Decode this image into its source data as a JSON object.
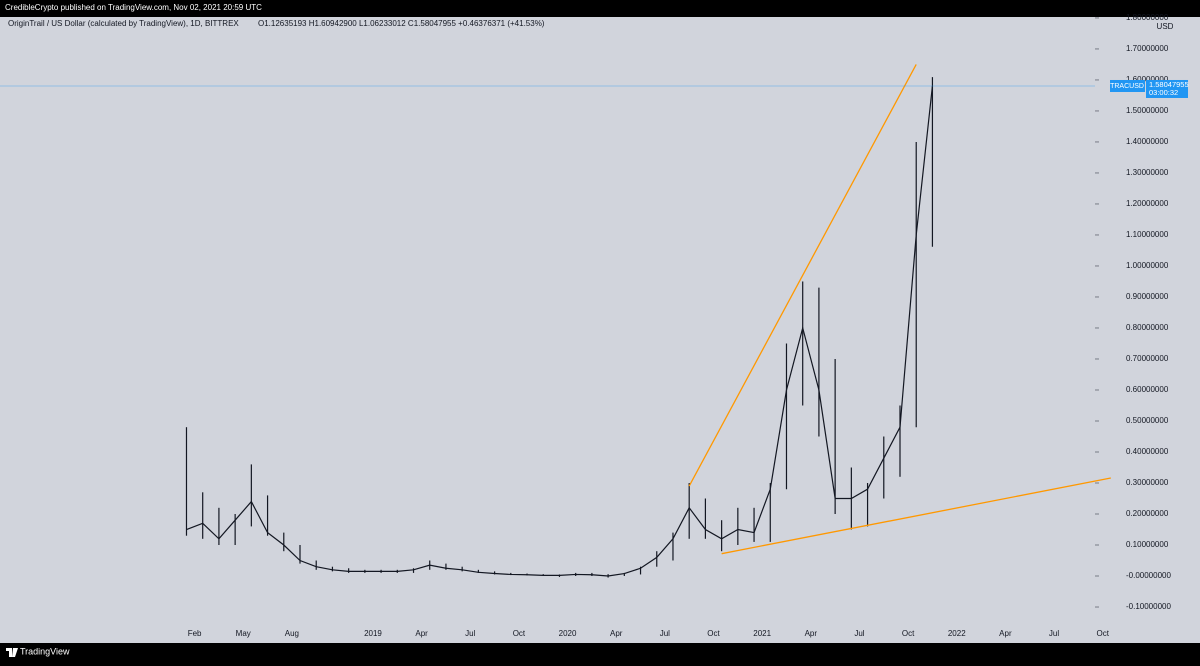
{
  "header": {
    "publisher": "CredibleCrypto published on TradingView.com, Nov 02, 2021 20:59 UTC"
  },
  "chart_data": {
    "type": "hlc",
    "symbol": "OriginTrail / US Dollar (calculated by TradingView), 1D, BITTREX",
    "ohlc_text": "O1.12635193 H1.60942900 L1.06233012 C1.58047955 +0.46376371 (+41.53%)",
    "x": [
      "2018-01",
      "2018-02",
      "2018-03",
      "2018-04",
      "2018-05",
      "2018-06",
      "2018-07",
      "2018-08",
      "2018-09",
      "2018-10",
      "2018-11",
      "2018-12",
      "2019-01",
      "2019-02",
      "2019-03",
      "2019-04",
      "2019-05",
      "2019-06",
      "2019-07",
      "2019-08",
      "2019-09",
      "2019-10",
      "2019-11",
      "2019-12",
      "2020-01",
      "2020-02",
      "2020-03",
      "2020-04",
      "2020-05",
      "2020-06",
      "2020-07",
      "2020-08",
      "2020-09",
      "2020-10",
      "2020-11",
      "2020-12",
      "2021-01",
      "2021-02",
      "2021-03",
      "2021-04",
      "2021-05",
      "2021-06",
      "2021-07",
      "2021-08",
      "2021-09",
      "2021-10",
      "2021-11"
    ],
    "high": [
      0.48,
      0.27,
      0.22,
      0.2,
      0.36,
      0.26,
      0.14,
      0.1,
      0.05,
      0.03,
      0.025,
      0.02,
      0.02,
      0.02,
      0.025,
      0.05,
      0.04,
      0.03,
      0.02,
      0.015,
      0.01,
      0.008,
      0.006,
      0.005,
      0.01,
      0.01,
      0.006,
      0.01,
      0.03,
      0.08,
      0.14,
      0.3,
      0.25,
      0.18,
      0.22,
      0.22,
      0.3,
      0.75,
      0.95,
      0.93,
      0.7,
      0.35,
      0.3,
      0.45,
      0.55,
      1.4,
      1.609
    ],
    "low": [
      0.13,
      0.12,
      0.1,
      0.1,
      0.16,
      0.13,
      0.08,
      0.04,
      0.02,
      0.015,
      0.01,
      0.01,
      0.01,
      0.01,
      0.01,
      0.02,
      0.02,
      0.015,
      0.01,
      0.005,
      0.003,
      0.002,
      0,
      -0.003,
      0,
      0,
      -0.005,
      0,
      0.005,
      0.03,
      0.05,
      0.12,
      0.12,
      0.08,
      0.1,
      0.11,
      0.11,
      0.28,
      0.55,
      0.45,
      0.2,
      0.15,
      0.16,
      0.25,
      0.32,
      0.48,
      1.062
    ],
    "close": [
      0.15,
      0.17,
      0.12,
      0.18,
      0.24,
      0.14,
      0.1,
      0.05,
      0.03,
      0.02,
      0.015,
      0.015,
      0.015,
      0.015,
      0.02,
      0.035,
      0.025,
      0.02,
      0.012,
      0.008,
      0.005,
      0.004,
      0.002,
      0.002,
      0.005,
      0.004,
      0,
      0.008,
      0.025,
      0.06,
      0.12,
      0.22,
      0.15,
      0.12,
      0.15,
      0.14,
      0.28,
      0.6,
      0.8,
      0.6,
      0.25,
      0.25,
      0.28,
      0.38,
      0.48,
      1.1,
      1.58047955
    ],
    "color": "#131722",
    "trendlines": [
      {
        "x": [
          "2020-08",
          "2021-10"
        ],
        "values": [
          0.29,
          1.65
        ],
        "color": "#ff9800"
      },
      {
        "x": [
          "2020-10",
          "2022-10"
        ],
        "values": [
          0.072,
          0.316
        ],
        "color": "#ff9800"
      }
    ],
    "last_price": 1.58047955,
    "last_symbol": "TRACUSD",
    "countdown": "03:00:32",
    "price_color": "#2196f3",
    "axis_unit": "USD",
    "xlim": [
      "2017-02",
      "2023-04"
    ],
    "xticks": [
      {
        "value": "2018-02",
        "label": "Feb"
      },
      {
        "value": "2018-05",
        "label": "May"
      },
      {
        "value": "2018-08",
        "label": "Aug"
      },
      {
        "value": "2019-01",
        "label": "2019"
      },
      {
        "value": "2019-04",
        "label": "Apr"
      },
      {
        "value": "2019-07",
        "label": "Jul"
      },
      {
        "value": "2019-10",
        "label": "Oct"
      },
      {
        "value": "2020-01",
        "label": "2020"
      },
      {
        "value": "2020-04",
        "label": "Apr"
      },
      {
        "value": "2020-07",
        "label": "Jul"
      },
      {
        "value": "2020-10",
        "label": "Oct"
      },
      {
        "value": "2021-01",
        "label": "2021"
      },
      {
        "value": "2021-04",
        "label": "Apr"
      },
      {
        "value": "2021-07",
        "label": "Jul"
      },
      {
        "value": "2021-10",
        "label": "Oct"
      },
      {
        "value": "2022-01",
        "label": "2022"
      },
      {
        "value": "2022-04",
        "label": "Apr"
      },
      {
        "value": "2022-07",
        "label": "Jul"
      },
      {
        "value": "2022-10",
        "label": "Oct"
      }
    ],
    "ylim": [
      -0.158,
      1.803
    ],
    "yticks": [
      {
        "value": 1.8,
        "label": "1.80000000"
      },
      {
        "value": 1.7,
        "label": "1.70000000"
      },
      {
        "value": 1.6,
        "label": "1.60000000"
      },
      {
        "value": 1.5,
        "label": "1.50000000"
      },
      {
        "value": 1.4,
        "label": "1.40000000"
      },
      {
        "value": 1.3,
        "label": "1.30000000"
      },
      {
        "value": 1.2,
        "label": "1.20000000"
      },
      {
        "value": 1.1,
        "label": "1.10000000"
      },
      {
        "value": 1.0,
        "label": "1.00000000"
      },
      {
        "value": 0.9,
        "label": "0.90000000"
      },
      {
        "value": 0.8,
        "label": "0.80000000"
      },
      {
        "value": 0.7,
        "label": "0.70000000"
      },
      {
        "value": 0.6,
        "label": "0.60000000"
      },
      {
        "value": 0.5,
        "label": "0.50000000"
      },
      {
        "value": 0.4,
        "label": "0.40000000"
      },
      {
        "value": 0.3,
        "label": "0.30000000"
      },
      {
        "value": 0.2,
        "label": "0.20000000"
      },
      {
        "value": 0.1,
        "label": "0.10000000"
      },
      {
        "value": 0,
        "label": "-0.00000000"
      },
      {
        "value": -0.1,
        "label": "-0.10000000"
      }
    ],
    "grid": false
  },
  "footer": {
    "brand": "TradingView"
  }
}
